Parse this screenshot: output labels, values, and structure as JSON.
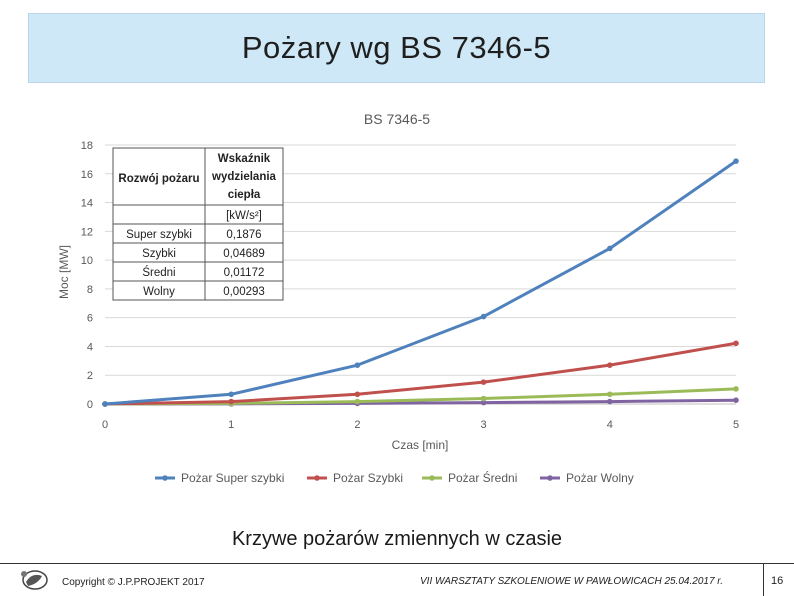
{
  "slide_title": "Pożary wg BS 7346-5",
  "caption": "Krzywe pożarów zmiennych w czasie",
  "footer": {
    "copyright": "Copyright © J.P.PROJEKT 2017",
    "event": "VII WARSZTATY SZKOLENIOWE W PAWŁOWICACH 25.04.2017 r.",
    "page_number": "16"
  },
  "table": {
    "header_col1": "Rozwój pożaru",
    "header_col2": [
      "Wskaźnik",
      "wydzielania",
      "ciepła"
    ],
    "unit": "[kW/s²]",
    "rows": [
      {
        "name": "Super szybki",
        "value": "0,1876"
      },
      {
        "name": "Szybki",
        "value": "0,04689"
      },
      {
        "name": "Średni",
        "value": "0,01172"
      },
      {
        "name": "Wolny",
        "value": "0,00293"
      }
    ]
  },
  "chart_data": {
    "type": "line",
    "title": "BS 7346-5",
    "xlabel": "Czas [min]",
    "ylabel": "Moc [MW]",
    "xlim": [
      0,
      5
    ],
    "ylim": [
      0,
      18
    ],
    "x_ticks": [
      "0",
      "1",
      "2",
      "3",
      "4",
      "5"
    ],
    "y_ticks": [
      "0",
      "2",
      "4",
      "6",
      "8",
      "10",
      "12",
      "14",
      "16",
      "18"
    ],
    "grid": true,
    "legend_position": "bottom",
    "x": [
      0,
      1,
      2,
      3,
      4,
      5
    ],
    "series": [
      {
        "name": "Pożar Super szybki",
        "color": "#4f81bd",
        "values": [
          0,
          0.675,
          2.7,
          6.08,
          10.81,
          16.88
        ]
      },
      {
        "name": "Pożar Szybki",
        "color": "#c0504d",
        "values": [
          0,
          0.169,
          0.675,
          1.52,
          2.7,
          4.22
        ]
      },
      {
        "name": "Pożar Średni",
        "color": "#9bbb59",
        "values": [
          0,
          0.042,
          0.169,
          0.38,
          0.675,
          1.05
        ]
      },
      {
        "name": "Pożar Wolny",
        "color": "#8064a2",
        "values": [
          0,
          0.011,
          0.042,
          0.095,
          0.169,
          0.264
        ]
      }
    ]
  }
}
